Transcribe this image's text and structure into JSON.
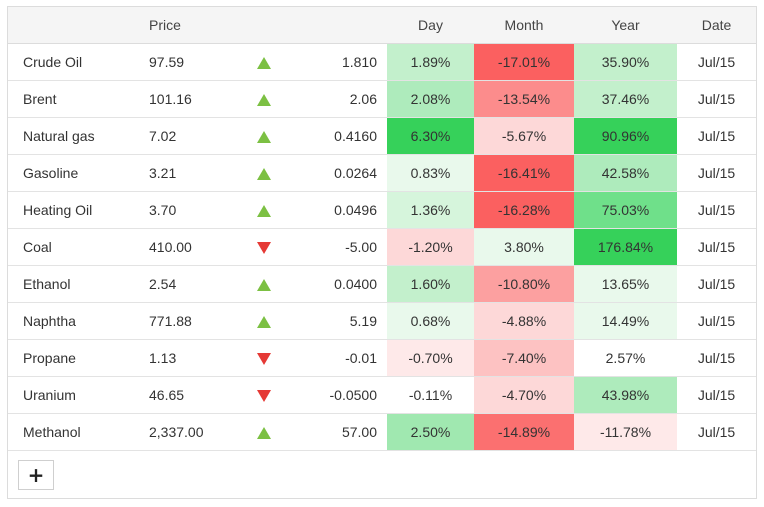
{
  "headers": {
    "name": "",
    "price": "Price",
    "arrow": "",
    "change": "",
    "day": "Day",
    "month": "Month",
    "year": "Year",
    "date": "Date"
  },
  "colors": {
    "up_arrow": "#7cc043",
    "down_arrow": "#e53935"
  },
  "rows": [
    {
      "name": "Crude Oil",
      "price": "97.59",
      "direction": "up",
      "change": "1.810",
      "day": "1.89%",
      "day_bg": "#c3f0cc",
      "month": "-17.01%",
      "month_bg": "#fb6060",
      "year": "35.90%",
      "year_bg": "#c3f0cc",
      "date": "Jul/15"
    },
    {
      "name": "Brent",
      "price": "101.16",
      "direction": "up",
      "change": "2.06",
      "day": "2.08%",
      "day_bg": "#aeebbc",
      "month": "-13.54%",
      "month_bg": "#fc8c8c",
      "year": "37.46%",
      "year_bg": "#c3f0cc",
      "date": "Jul/15"
    },
    {
      "name": "Natural gas",
      "price": "7.02",
      "direction": "up",
      "change": "0.4160",
      "day": "6.30%",
      "day_bg": "#36d15a",
      "month": "-5.67%",
      "month_bg": "#fdd8d8",
      "year": "90.96%",
      "year_bg": "#36d15a",
      "date": "Jul/15"
    },
    {
      "name": "Gasoline",
      "price": "3.21",
      "direction": "up",
      "change": "0.0264",
      "day": "0.83%",
      "day_bg": "#e9f9ec",
      "month": "-16.41%",
      "month_bg": "#fb6060",
      "year": "42.58%",
      "year_bg": "#aeebbc",
      "date": "Jul/15"
    },
    {
      "name": "Heating Oil",
      "price": "3.70",
      "direction": "up",
      "change": "0.0496",
      "day": "1.36%",
      "day_bg": "#d6f5dc",
      "month": "-16.28%",
      "month_bg": "#fb6060",
      "year": "75.03%",
      "year_bg": "#6fe08a",
      "date": "Jul/15"
    },
    {
      "name": "Coal",
      "price": "410.00",
      "direction": "down",
      "change": "-5.00",
      "day": "-1.20%",
      "day_bg": "#fdd8d8",
      "month": "3.80%",
      "month_bg": "#e9f9ec",
      "year": "176.84%",
      "year_bg": "#36d15a",
      "date": "Jul/15"
    },
    {
      "name": "Ethanol",
      "price": "2.54",
      "direction": "up",
      "change": "0.0400",
      "day": "1.60%",
      "day_bg": "#c3f0cc",
      "month": "-10.80%",
      "month_bg": "#fca0a0",
      "year": "13.65%",
      "year_bg": "#e9f9ec",
      "date": "Jul/15"
    },
    {
      "name": "Naphtha",
      "price": "771.88",
      "direction": "up",
      "change": "5.19",
      "day": "0.68%",
      "day_bg": "#e9f9ec",
      "month": "-4.88%",
      "month_bg": "#fdd8d8",
      "year": "14.49%",
      "year_bg": "#e9f9ec",
      "date": "Jul/15"
    },
    {
      "name": "Propane",
      "price": "1.13",
      "direction": "down",
      "change": "-0.01",
      "day": "-0.70%",
      "day_bg": "#fee9e9",
      "month": "-7.40%",
      "month_bg": "#fdc2c2",
      "year": "2.57%",
      "year_bg": "#ffffff",
      "date": "Jul/15"
    },
    {
      "name": "Uranium",
      "price": "46.65",
      "direction": "down",
      "change": "-0.0500",
      "day": "-0.11%",
      "day_bg": "#ffffff",
      "month": "-4.70%",
      "month_bg": "#fdd8d8",
      "year": "43.98%",
      "year_bg": "#aeebbc",
      "date": "Jul/15"
    },
    {
      "name": "Methanol",
      "price": "2,337.00",
      "direction": "up",
      "change": "57.00",
      "day": "2.50%",
      "day_bg": "#a0e8b0",
      "month": "-14.89%",
      "month_bg": "#fb7070",
      "year": "-11.78%",
      "year_bg": "#fee9e9",
      "date": "Jul/15"
    }
  ],
  "add_button": {
    "label": "+"
  }
}
